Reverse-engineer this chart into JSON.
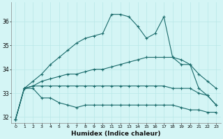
{
  "xlabel": "Humidex (Indice chaleur)",
  "x": [
    0,
    1,
    2,
    3,
    4,
    5,
    6,
    7,
    8,
    9,
    10,
    11,
    12,
    13,
    14,
    15,
    16,
    17,
    18,
    19,
    20,
    21,
    22,
    23
  ],
  "line_peak": [
    31.9,
    33.2,
    33.5,
    33.8,
    34.2,
    34.5,
    34.8,
    35.1,
    35.3,
    35.4,
    35.5,
    36.3,
    36.3,
    36.2,
    35.8,
    35.3,
    35.5,
    36.2,
    34.5,
    34.2,
    34.2,
    33.2,
    32.9,
    32.5
  ],
  "line_mid_up": [
    31.9,
    33.2,
    33.3,
    33.5,
    33.6,
    33.7,
    33.8,
    33.8,
    33.9,
    34.0,
    34.0,
    34.1,
    34.2,
    34.3,
    34.4,
    34.5,
    34.5,
    34.5,
    34.5,
    34.4,
    34.2,
    33.8,
    33.5,
    33.2
  ],
  "line_flat": [
    31.9,
    33.2,
    33.3,
    33.3,
    33.3,
    33.3,
    33.3,
    33.3,
    33.3,
    33.3,
    33.3,
    33.3,
    33.3,
    33.3,
    33.3,
    33.3,
    33.3,
    33.3,
    33.2,
    33.2,
    33.2,
    33.0,
    32.9,
    32.5
  ],
  "line_low": [
    31.9,
    33.2,
    33.2,
    32.8,
    32.8,
    32.6,
    32.5,
    32.4,
    32.5,
    32.5,
    32.5,
    32.5,
    32.5,
    32.5,
    32.5,
    32.5,
    32.5,
    32.5,
    32.5,
    32.4,
    32.3,
    32.3,
    32.2,
    32.2
  ],
  "ylim": [
    31.75,
    36.8
  ],
  "yticks": [
    32,
    33,
    34,
    35,
    36
  ],
  "xlim": [
    -0.5,
    23.5
  ],
  "bg_color": "#d4f5f5",
  "line_color": "#1a6b6b",
  "grid_color": "#b8e8e8",
  "spine_color": "#888888"
}
